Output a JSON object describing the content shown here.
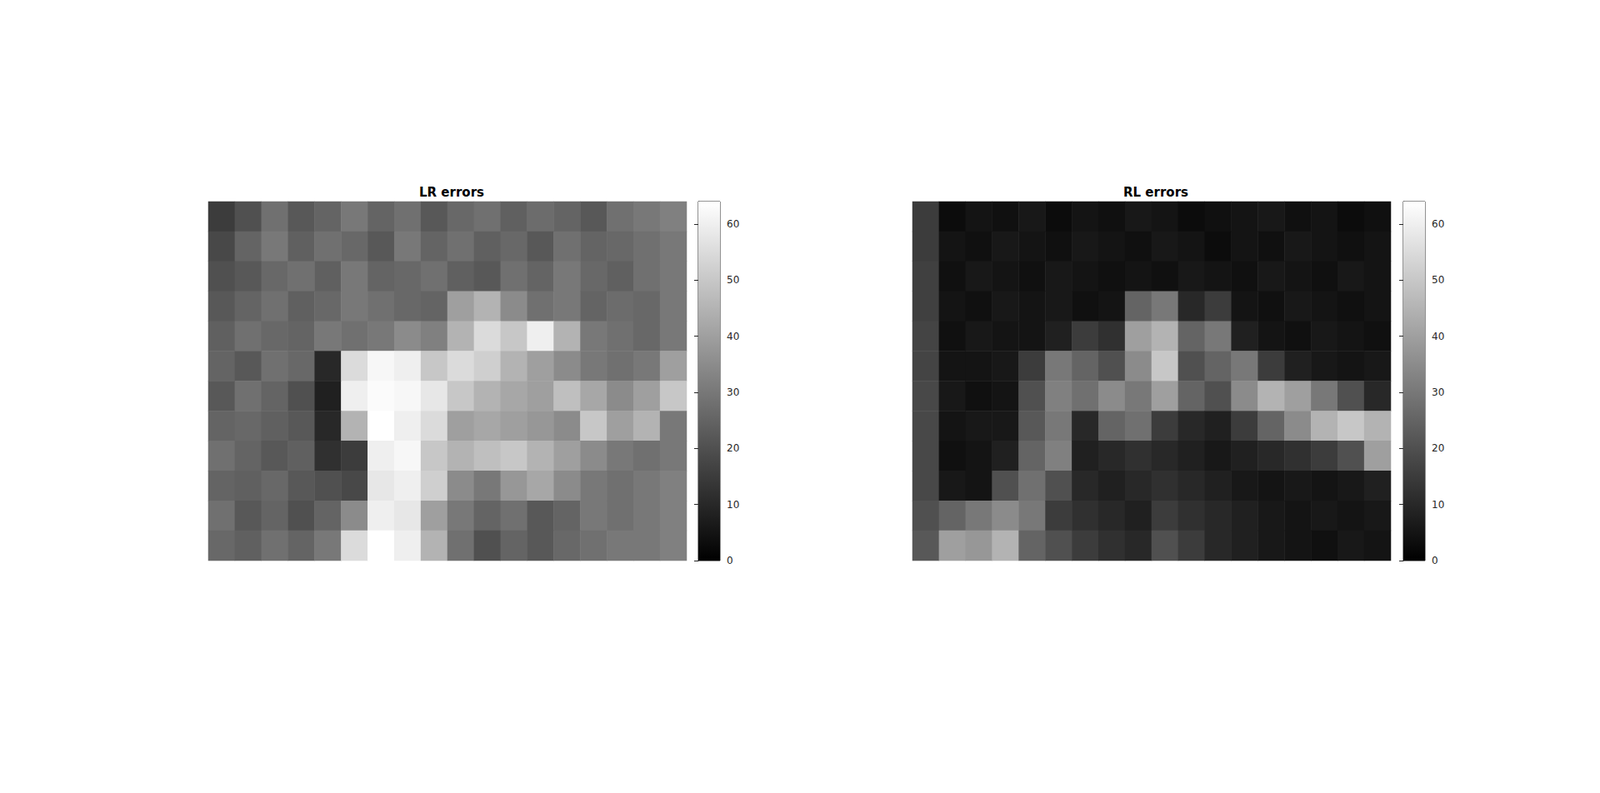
{
  "chart_data": [
    {
      "type": "heatmap",
      "title": "LR errors",
      "tick_labels": false,
      "colorbar_range": [
        0,
        64
      ],
      "colorbar_ticks": [
        0,
        10,
        20,
        30,
        40,
        50,
        60
      ],
      "cells": [
        [
          15,
          20,
          28,
          22,
          25,
          30,
          25,
          28,
          22,
          26,
          28,
          24,
          27,
          25,
          22,
          28,
          30,
          32
        ],
        [
          18,
          25,
          30,
          24,
          28,
          26,
          22,
          30,
          25,
          28,
          24,
          26,
          22,
          28,
          25,
          26,
          28,
          30
        ],
        [
          20,
          22,
          26,
          28,
          24,
          30,
          25,
          26,
          28,
          24,
          22,
          28,
          25,
          30,
          26,
          24,
          28,
          30
        ],
        [
          22,
          25,
          28,
          24,
          26,
          30,
          28,
          26,
          25,
          40,
          45,
          35,
          28,
          30,
          25,
          27,
          26,
          30
        ],
        [
          24,
          28,
          26,
          25,
          30,
          28,
          30,
          35,
          32,
          45,
          55,
          50,
          60,
          45,
          30,
          28,
          26,
          30
        ],
        [
          25,
          22,
          28,
          26,
          10,
          55,
          62,
          60,
          50,
          55,
          52,
          45,
          40,
          35,
          30,
          28,
          30,
          40
        ],
        [
          22,
          28,
          25,
          20,
          8,
          60,
          63,
          62,
          58,
          50,
          45,
          42,
          40,
          48,
          42,
          35,
          40,
          50
        ],
        [
          25,
          26,
          24,
          22,
          10,
          45,
          64,
          60,
          55,
          40,
          42,
          40,
          38,
          35,
          50,
          40,
          45,
          30
        ],
        [
          28,
          25,
          22,
          24,
          12,
          15,
          60,
          62,
          50,
          45,
          48,
          50,
          45,
          40,
          35,
          30,
          28,
          30
        ],
        [
          25,
          24,
          26,
          22,
          20,
          18,
          58,
          60,
          52,
          35,
          30,
          38,
          42,
          35,
          30,
          28,
          30,
          32
        ],
        [
          28,
          22,
          25,
          20,
          25,
          35,
          60,
          58,
          40,
          30,
          25,
          28,
          22,
          25,
          30,
          28,
          30,
          32
        ],
        [
          26,
          24,
          28,
          25,
          30,
          55,
          64,
          60,
          45,
          28,
          20,
          25,
          22,
          26,
          28,
          30,
          30,
          32
        ]
      ]
    },
    {
      "type": "heatmap",
      "title": "RL errors",
      "tick_labels": false,
      "colorbar_range": [
        0,
        64
      ],
      "colorbar_ticks": [
        0,
        10,
        20,
        30,
        40,
        50,
        60
      ],
      "cells": [
        [
          15,
          3,
          5,
          4,
          6,
          3,
          5,
          4,
          6,
          5,
          3,
          4,
          5,
          6,
          4,
          5,
          3,
          4
        ],
        [
          15,
          5,
          4,
          6,
          5,
          4,
          6,
          5,
          4,
          6,
          5,
          3,
          5,
          4,
          6,
          5,
          4,
          5
        ],
        [
          16,
          4,
          6,
          5,
          4,
          6,
          5,
          4,
          5,
          4,
          6,
          5,
          4,
          6,
          5,
          4,
          6,
          5
        ],
        [
          16,
          5,
          4,
          6,
          5,
          6,
          4,
          5,
          25,
          30,
          10,
          15,
          5,
          4,
          6,
          5,
          4,
          5
        ],
        [
          17,
          4,
          6,
          5,
          5,
          8,
          15,
          12,
          40,
          45,
          25,
          30,
          8,
          5,
          4,
          6,
          5,
          4
        ],
        [
          17,
          5,
          5,
          6,
          15,
          30,
          25,
          20,
          35,
          50,
          20,
          25,
          30,
          15,
          8,
          6,
          5,
          6
        ],
        [
          18,
          6,
          4,
          5,
          20,
          32,
          28,
          35,
          30,
          40,
          25,
          20,
          35,
          45,
          40,
          30,
          20,
          10
        ],
        [
          18,
          5,
          6,
          6,
          22,
          30,
          10,
          25,
          28,
          15,
          10,
          8,
          15,
          25,
          35,
          45,
          50,
          45
        ],
        [
          18,
          4,
          5,
          8,
          25,
          32,
          8,
          10,
          12,
          10,
          8,
          6,
          8,
          10,
          12,
          15,
          20,
          40
        ],
        [
          18,
          6,
          5,
          20,
          28,
          20,
          10,
          8,
          10,
          12,
          10,
          8,
          6,
          5,
          6,
          5,
          6,
          8
        ],
        [
          20,
          25,
          30,
          35,
          30,
          15,
          12,
          10,
          8,
          15,
          12,
          10,
          8,
          6,
          5,
          6,
          5,
          6
        ],
        [
          22,
          40,
          38,
          45,
          25,
          20,
          15,
          12,
          10,
          20,
          15,
          10,
          8,
          6,
          5,
          4,
          6,
          5
        ]
      ]
    }
  ]
}
